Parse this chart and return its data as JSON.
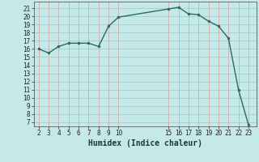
{
  "x": [
    2,
    3,
    4,
    5,
    6,
    7,
    8,
    9,
    10,
    15,
    16,
    17,
    18,
    19,
    20,
    21,
    22,
    23
  ],
  "y": [
    16.0,
    15.5,
    16.3,
    16.7,
    16.7,
    16.7,
    16.3,
    18.8,
    19.9,
    20.9,
    21.1,
    20.3,
    20.2,
    19.4,
    18.8,
    17.3,
    11.0,
    6.7
  ],
  "line_color": "#2d6b5e",
  "marker_color": "#2d6b5e",
  "bg_color": "#c5e8e8",
  "xlabel": "Humidex (Indice chaleur)",
  "xlim": [
    1.5,
    23.8
  ],
  "ylim": [
    6.5,
    21.8
  ],
  "yticks": [
    7,
    8,
    9,
    10,
    11,
    12,
    13,
    14,
    15,
    16,
    17,
    18,
    19,
    20,
    21
  ],
  "xticks": [
    2,
    3,
    4,
    5,
    6,
    7,
    8,
    9,
    10,
    15,
    16,
    17,
    18,
    19,
    20,
    21,
    22,
    23
  ],
  "tick_fontsize": 5.5,
  "label_fontsize": 7.0,
  "vgrid_color": "#d4a8a8",
  "hgrid_color": "#a8cccc"
}
